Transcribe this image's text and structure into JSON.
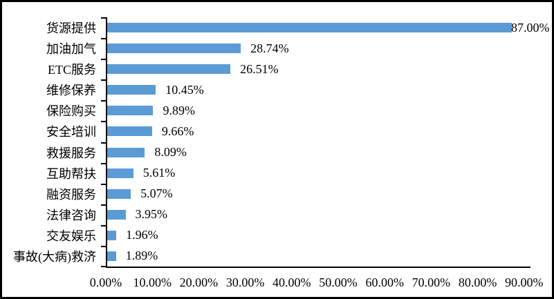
{
  "chart_data": {
    "type": "bar",
    "orientation": "horizontal",
    "title": "",
    "xlabel": "",
    "ylabel": "",
    "categories": [
      "货源提供",
      "加油加气",
      "ETC服务",
      "维修保养",
      "保险购买",
      "安全培训",
      "救援服务",
      "互助帮扶",
      "融资服务",
      "法律咨询",
      "交友娱乐",
      "事故(大病)救济"
    ],
    "values": [
      87.0,
      28.74,
      26.51,
      10.45,
      9.89,
      9.66,
      8.09,
      5.61,
      5.07,
      3.95,
      1.96,
      1.89
    ],
    "value_labels": [
      "87.00%",
      "28.74%",
      "26.51%",
      "10.45%",
      "9.89%",
      "9.66%",
      "8.09%",
      "5.61%",
      "5.07%",
      "3.95%",
      "1.96%",
      "1.89%"
    ],
    "x_tick_labels": [
      "0.00%",
      "10.00%",
      "20.00%",
      "30.00%",
      "40.00%",
      "50.00%",
      "60.00%",
      "70.00%",
      "80.00%",
      "90.00%"
    ],
    "xlim": [
      0,
      90
    ],
    "x_tick_step": 10,
    "grid": false,
    "legend_position": "none",
    "bar_color": "#5B9BD5",
    "axis_color": "#000000",
    "text_color": "#000000",
    "background_color": "#FFFFFF"
  }
}
